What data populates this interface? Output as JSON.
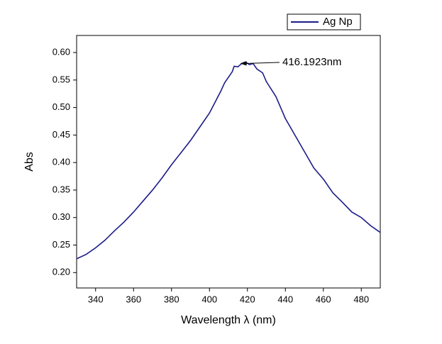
{
  "chart_data": {
    "type": "line",
    "x_label": "Wavelength λ (nm)",
    "y_label": "Abs",
    "x": [
      330,
      335,
      340,
      345,
      350,
      355,
      360,
      365,
      370,
      375,
      380,
      385,
      390,
      395,
      400,
      403,
      406,
      408,
      410,
      412,
      413,
      415,
      417,
      419,
      421,
      423,
      425,
      428,
      430,
      435,
      440,
      445,
      450,
      455,
      460,
      465,
      470,
      475,
      480,
      485,
      490
    ],
    "series": [
      {
        "name": "Ag Np",
        "color": "#1c1c8a",
        "values": [
          0.225,
          0.233,
          0.245,
          0.259,
          0.276,
          0.292,
          0.31,
          0.33,
          0.35,
          0.372,
          0.396,
          0.418,
          0.44,
          0.465,
          0.49,
          0.51,
          0.53,
          0.545,
          0.555,
          0.565,
          0.575,
          0.574,
          0.58,
          0.583,
          0.578,
          0.58,
          0.57,
          0.563,
          0.547,
          0.52,
          0.48,
          0.45,
          0.42,
          0.39,
          0.37,
          0.345,
          0.328,
          0.31,
          0.3,
          0.285,
          0.273
        ]
      }
    ],
    "xlim": [
      330,
      490
    ],
    "ylim": [
      0.172,
      0.631
    ],
    "xticks": [
      340,
      360,
      380,
      400,
      420,
      440,
      460,
      480
    ],
    "yticks": [
      {
        "value": 0.2,
        "label": "0.20"
      },
      0.25,
      {
        "value": 0.3,
        "label": "0.30"
      },
      0.35,
      {
        "value": 0.4,
        "label": "0.40"
      },
      0.45,
      {
        "value": 0.5,
        "label": "0.50"
      },
      0.55,
      {
        "value": 0.6,
        "label": "0.60"
      }
    ],
    "annotation": {
      "text": "416.1923nm",
      "x": 416.1923,
      "y": 0.58
    },
    "legend": "upper right"
  }
}
